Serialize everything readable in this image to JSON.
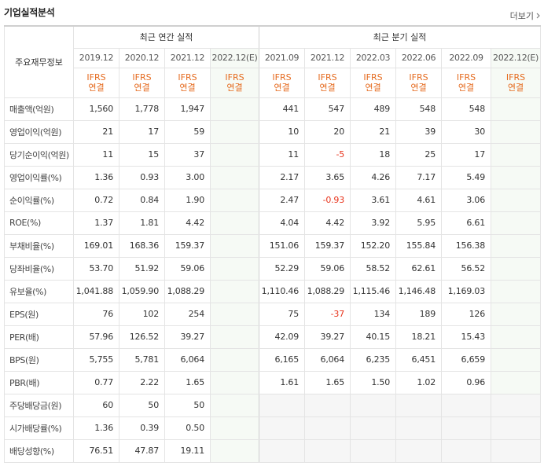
{
  "header": {
    "title": "기업실적분석",
    "more_label": "더보기"
  },
  "table": {
    "row_header_label": "주요재무정보",
    "annual_group_label": "최근 연간 실적",
    "quarter_group_label": "최근 분기 실적",
    "annual_periods": [
      "2019.12",
      "2020.12",
      "2021.12",
      "2022.12(E)"
    ],
    "quarter_periods": [
      "2021.09",
      "2021.12",
      "2022.03",
      "2022.06",
      "2022.09",
      "2022.12(E)"
    ],
    "ifrs_top": "IFRS",
    "ifrs_bottom": "연결",
    "rows": [
      {
        "label": "매출액(억원)",
        "annual": [
          "1,560",
          "1,778",
          "1,947",
          ""
        ],
        "quarter": [
          "441",
          "547",
          "489",
          "548",
          "548",
          ""
        ]
      },
      {
        "label": "영업이익(억원)",
        "annual": [
          "21",
          "17",
          "59",
          ""
        ],
        "quarter": [
          "10",
          "20",
          "21",
          "39",
          "30",
          ""
        ]
      },
      {
        "label": "당기순이익(억원)",
        "annual": [
          "11",
          "15",
          "37",
          ""
        ],
        "quarter": [
          "11",
          "-5",
          "18",
          "25",
          "17",
          ""
        ]
      },
      {
        "label": "영업이익률(%)",
        "annual": [
          "1.36",
          "0.93",
          "3.00",
          ""
        ],
        "quarter": [
          "2.17",
          "3.65",
          "4.26",
          "7.17",
          "5.49",
          ""
        ]
      },
      {
        "label": "순이익률(%)",
        "annual": [
          "0.72",
          "0.84",
          "1.90",
          ""
        ],
        "quarter": [
          "2.47",
          "-0.93",
          "3.61",
          "4.61",
          "3.06",
          ""
        ]
      },
      {
        "label": "ROE(%)",
        "annual": [
          "1.37",
          "1.81",
          "4.42",
          ""
        ],
        "quarter": [
          "4.04",
          "4.42",
          "3.92",
          "5.95",
          "6.61",
          ""
        ]
      },
      {
        "label": "부채비율(%)",
        "annual": [
          "169.01",
          "168.36",
          "159.37",
          ""
        ],
        "quarter": [
          "151.06",
          "159.37",
          "152.20",
          "155.84",
          "156.38",
          ""
        ]
      },
      {
        "label": "당좌비율(%)",
        "annual": [
          "53.70",
          "51.92",
          "59.06",
          ""
        ],
        "quarter": [
          "52.29",
          "59.06",
          "58.52",
          "62.61",
          "56.52",
          ""
        ]
      },
      {
        "label": "유보율(%)",
        "annual": [
          "1,041.88",
          "1,059.90",
          "1,088.29",
          ""
        ],
        "quarter": [
          "1,110.46",
          "1,088.29",
          "1,115.46",
          "1,146.48",
          "1,169.03",
          ""
        ]
      },
      {
        "label": "EPS(원)",
        "annual": [
          "76",
          "102",
          "254",
          ""
        ],
        "quarter": [
          "75",
          "-37",
          "134",
          "189",
          "126",
          ""
        ]
      },
      {
        "label": "PER(배)",
        "annual": [
          "57.96",
          "126.52",
          "39.27",
          ""
        ],
        "quarter": [
          "42.09",
          "39.27",
          "40.15",
          "18.21",
          "15.43",
          ""
        ]
      },
      {
        "label": "BPS(원)",
        "annual": [
          "5,755",
          "5,781",
          "6,064",
          ""
        ],
        "quarter": [
          "6,165",
          "6,064",
          "6,235",
          "6,451",
          "6,659",
          ""
        ]
      },
      {
        "label": "PBR(배)",
        "annual": [
          "0.77",
          "2.22",
          "1.65",
          ""
        ],
        "quarter": [
          "1.61",
          "1.65",
          "1.50",
          "1.02",
          "0.96",
          ""
        ]
      },
      {
        "label": "주당배당금(원)",
        "annual": [
          "60",
          "50",
          "50",
          ""
        ],
        "quarter": null
      },
      {
        "label": "시가배당률(%)",
        "annual": [
          "1.36",
          "0.39",
          "0.50",
          ""
        ],
        "quarter": null
      },
      {
        "label": "배당성향(%)",
        "annual": [
          "76.51",
          "47.87",
          "19.11",
          ""
        ],
        "quarter": null
      }
    ]
  },
  "colors": {
    "ifrs_orange": "#e56a1e",
    "negative_red": "#e8341c",
    "estimate_bg": "#f6faf5"
  }
}
